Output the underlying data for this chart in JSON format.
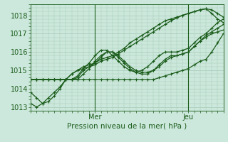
{
  "title": "Pression niveau de la mer( hPa )",
  "background_color": "#cce8dc",
  "grid_color": "#aacebb",
  "line_color": "#1a5c1a",
  "ylim": [
    1012.8,
    1018.6
  ],
  "xlim": [
    0,
    66
  ],
  "mer_x": 22,
  "jeu_x": 54,
  "series": [
    [
      0,
      1013.8,
      2,
      1013.5,
      4,
      1013.2,
      6,
      1013.3,
      8,
      1013.6,
      10,
      1014.0,
      12,
      1014.5,
      14,
      1014.8,
      16,
      1015.0,
      18,
      1015.1,
      20,
      1015.2,
      22,
      1015.3,
      24,
      1015.5,
      26,
      1015.6,
      28,
      1015.7,
      30,
      1015.9,
      32,
      1016.1,
      34,
      1016.3,
      36,
      1016.5,
      38,
      1016.7,
      40,
      1016.9,
      42,
      1017.1,
      44,
      1017.3,
      46,
      1017.5,
      48,
      1017.7,
      50,
      1017.85,
      52,
      1018.0,
      54,
      1018.1,
      56,
      1018.2,
      58,
      1018.3,
      60,
      1018.35,
      62,
      1018.1,
      64,
      1017.8,
      66,
      1017.6
    ],
    [
      0,
      1014.5,
      2,
      1014.5,
      4,
      1014.5,
      6,
      1014.5,
      8,
      1014.5,
      10,
      1014.5,
      12,
      1014.5,
      14,
      1014.5,
      16,
      1014.5,
      18,
      1014.5,
      20,
      1014.5,
      22,
      1014.5,
      24,
      1014.5,
      26,
      1014.5,
      28,
      1014.5,
      30,
      1014.5,
      32,
      1014.5,
      34,
      1014.5,
      36,
      1014.5,
      38,
      1014.5,
      40,
      1014.5,
      42,
      1014.5,
      44,
      1014.6,
      46,
      1014.7,
      48,
      1014.8,
      50,
      1014.9,
      52,
      1015.0,
      54,
      1015.1,
      56,
      1015.3,
      58,
      1015.5,
      60,
      1015.6,
      62,
      1016.0,
      64,
      1016.5,
      66,
      1017.0
    ],
    [
      0,
      1014.5,
      2,
      1014.5,
      4,
      1014.5,
      6,
      1014.5,
      8,
      1014.5,
      10,
      1014.5,
      12,
      1014.5,
      14,
      1014.5,
      16,
      1014.5,
      18,
      1014.8,
      20,
      1015.1,
      22,
      1015.5,
      24,
      1015.8,
      26,
      1016.0,
      28,
      1016.0,
      30,
      1015.8,
      32,
      1015.5,
      34,
      1015.2,
      36,
      1015.0,
      38,
      1014.9,
      40,
      1014.9,
      42,
      1015.0,
      44,
      1015.2,
      46,
      1015.5,
      48,
      1015.7,
      50,
      1015.8,
      52,
      1015.9,
      54,
      1016.0,
      56,
      1016.3,
      58,
      1016.6,
      60,
      1016.8,
      62,
      1017.0,
      64,
      1017.1,
      66,
      1017.2
    ],
    [
      0,
      1014.5,
      2,
      1014.5,
      4,
      1014.5,
      6,
      1014.5,
      8,
      1014.5,
      10,
      1014.5,
      12,
      1014.5,
      14,
      1014.5,
      16,
      1014.6,
      18,
      1015.0,
      20,
      1015.2,
      22,
      1015.4,
      24,
      1015.7,
      26,
      1016.0,
      28,
      1016.0,
      30,
      1015.7,
      32,
      1015.4,
      34,
      1015.1,
      36,
      1014.9,
      38,
      1014.8,
      40,
      1014.8,
      42,
      1015.0,
      44,
      1015.3,
      46,
      1015.6,
      48,
      1015.8,
      50,
      1015.8,
      52,
      1015.9,
      54,
      1016.0,
      56,
      1016.3,
      58,
      1016.6,
      60,
      1016.9,
      62,
      1017.1,
      64,
      1017.3,
      66,
      1017.5
    ],
    [
      0,
      1014.5,
      2,
      1014.5,
      4,
      1014.5,
      6,
      1014.5,
      8,
      1014.5,
      10,
      1014.5,
      12,
      1014.5,
      14,
      1014.5,
      16,
      1014.7,
      18,
      1015.1,
      20,
      1015.4,
      22,
      1015.8,
      24,
      1016.1,
      26,
      1016.1,
      28,
      1015.8,
      30,
      1015.5,
      32,
      1015.2,
      34,
      1015.0,
      36,
      1014.9,
      38,
      1015.0,
      40,
      1015.2,
      42,
      1015.5,
      44,
      1015.8,
      46,
      1016.0,
      48,
      1016.0,
      50,
      1016.0,
      52,
      1016.1,
      54,
      1016.2,
      56,
      1016.5,
      58,
      1016.8,
      60,
      1017.0,
      62,
      1017.3,
      64,
      1017.6,
      66,
      1017.8
    ],
    [
      0,
      1013.2,
      2,
      1013.0,
      4,
      1013.2,
      6,
      1013.5,
      8,
      1013.8,
      10,
      1014.1,
      12,
      1014.5,
      14,
      1014.8,
      16,
      1015.0,
      18,
      1015.2,
      20,
      1015.3,
      22,
      1015.4,
      24,
      1015.6,
      26,
      1015.7,
      28,
      1015.8,
      30,
      1016.0,
      32,
      1016.2,
      34,
      1016.5,
      36,
      1016.7,
      38,
      1016.9,
      40,
      1017.1,
      42,
      1017.3,
      44,
      1017.5,
      46,
      1017.7,
      48,
      1017.8,
      50,
      1017.9,
      52,
      1018.0,
      54,
      1018.1,
      56,
      1018.2,
      58,
      1018.3,
      60,
      1018.35,
      62,
      1018.3,
      64,
      1018.1,
      66,
      1017.9
    ]
  ],
  "yticks": [
    1013,
    1014,
    1015,
    1016,
    1017,
    1018
  ],
  "marker": "+",
  "markersize": 3.5,
  "linewidth": 0.9
}
